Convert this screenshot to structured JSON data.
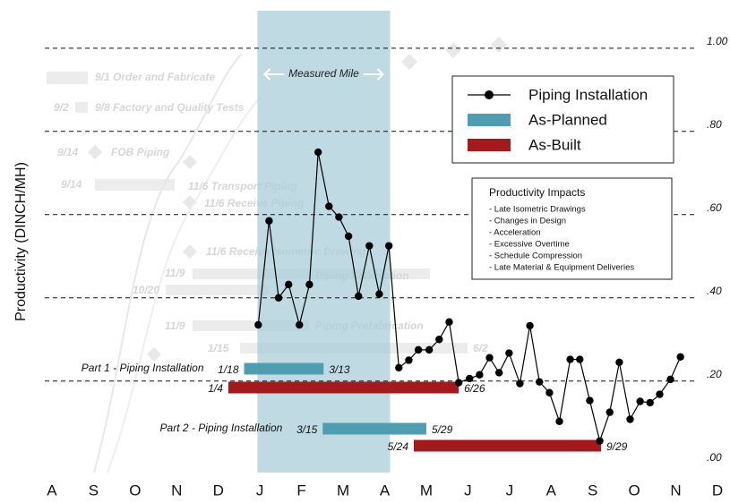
{
  "chart_data": {
    "type": "line",
    "y_label": "Productivity (DINCH/MH)",
    "xlim": [
      -0.4,
      16.2
    ],
    "xticks": [
      {
        "value": 0,
        "label": "A"
      },
      {
        "value": 1,
        "label": "S"
      },
      {
        "value": 2,
        "label": "O"
      },
      {
        "value": 3,
        "label": "N"
      },
      {
        "value": 4,
        "label": "D"
      },
      {
        "value": 5,
        "label": "J"
      },
      {
        "value": 6,
        "label": "F"
      },
      {
        "value": 7,
        "label": "M"
      },
      {
        "value": 8,
        "label": "A"
      },
      {
        "value": 9,
        "label": "M"
      },
      {
        "value": 10,
        "label": "J"
      },
      {
        "value": 11,
        "label": "J"
      },
      {
        "value": 12,
        "label": "A"
      },
      {
        "value": 13,
        "label": "S"
      },
      {
        "value": 14,
        "label": "O"
      },
      {
        "value": 15,
        "label": "N"
      },
      {
        "value": 16,
        "label": "D"
      }
    ],
    "ylim": [
      -0.02,
      1.09
    ],
    "yticks": [
      {
        "value": 0,
        "label": ".00"
      },
      {
        "value": 0.2,
        "label": ".20"
      },
      {
        "value": 0.4,
        "label": ".40"
      },
      {
        "value": 0.6,
        "label": ".60"
      },
      {
        "value": 0.8,
        "label": ".80"
      },
      {
        "value": 1,
        "label": "1.00"
      }
    ],
    "grid": true,
    "highlight": {
      "label": "Measured Mile",
      "start": 4.94,
      "end": 8.13,
      "color": "#a9cdd8"
    },
    "series": [
      {
        "name": "Piping Installation",
        "color": "#000000",
        "x": [
          4.96,
          5.22,
          5.45,
          5.69,
          5.95,
          6.19,
          6.4,
          6.66,
          6.9,
          7.13,
          7.37,
          7.63,
          7.87,
          8.1,
          8.34,
          8.58,
          8.81,
          9.07,
          9.31,
          9.55,
          9.78,
          10.04,
          10.28,
          10.52,
          10.75,
          10.99,
          11.25,
          11.49,
          11.72,
          11.96,
          12.2,
          12.46,
          12.69,
          12.93,
          13.17,
          13.41,
          13.64,
          13.9,
          14.14,
          14.38,
          14.61,
          14.87,
          15.11
        ],
        "values": [
          0.335,
          0.585,
          0.4,
          0.432,
          0.335,
          0.432,
          0.75,
          0.62,
          0.594,
          0.548,
          0.404,
          0.525,
          0.409,
          0.525,
          0.232,
          0.25,
          0.275,
          0.275,
          0.3,
          0.342,
          0.196,
          0.206,
          0.215,
          0.256,
          0.22,
          0.267,
          0.194,
          0.333,
          0.198,
          0.172,
          0.103,
          0.252,
          0.252,
          0.153,
          0.056,
          0.125,
          0.245,
          0.108,
          0.151,
          0.148,
          0.168,
          0.204,
          0.258
        ]
      }
    ],
    "bar_series": [
      {
        "name": "As-Planned",
        "color": "#4f9db0"
      },
      {
        "name": "As-Built",
        "color": "#a3191c"
      }
    ],
    "tasks": [
      {
        "name": "Part 1 - Piping Installation",
        "planned": {
          "start": 4.62,
          "end": 6.53,
          "start_label": "1/18",
          "end_label": "3/13"
        },
        "built": {
          "start": 4.24,
          "end": 9.78,
          "start_label": "1/4",
          "end_label": "6/26"
        }
      },
      {
        "name": "Part 2 - Piping Installation",
        "planned": {
          "start": 6.51,
          "end": 9.0,
          "start_label": "3/15",
          "end_label": "5/29"
        },
        "built": {
          "start": 8.7,
          "end": 13.2,
          "start_label": "5/24",
          "end_label": "9/29"
        }
      }
    ],
    "impacts": {
      "title": "Productivity Impacts",
      "items": [
        "- Late Isometric Drawings",
        "- Changes in Design",
        "- Acceleration",
        "- Excessive Overtime",
        "- Schedule Compression",
        "- Late Material & Equipment Deliveries"
      ]
    },
    "background_labels": [
      "9/1 Order and Fabricate",
      "9/2",
      "9/8 Factory and Quality Tests",
      "9/14",
      "FOB Piping",
      "9/14",
      "11/6 Transport Piping",
      "11/6 Receive Piping",
      "11/6 Receive Isometric Drawings",
      "11/9",
      "Piping Fabrication",
      "10/20",
      "11/9",
      "Piping Prefabrication",
      "1/15",
      "6/2"
    ]
  }
}
